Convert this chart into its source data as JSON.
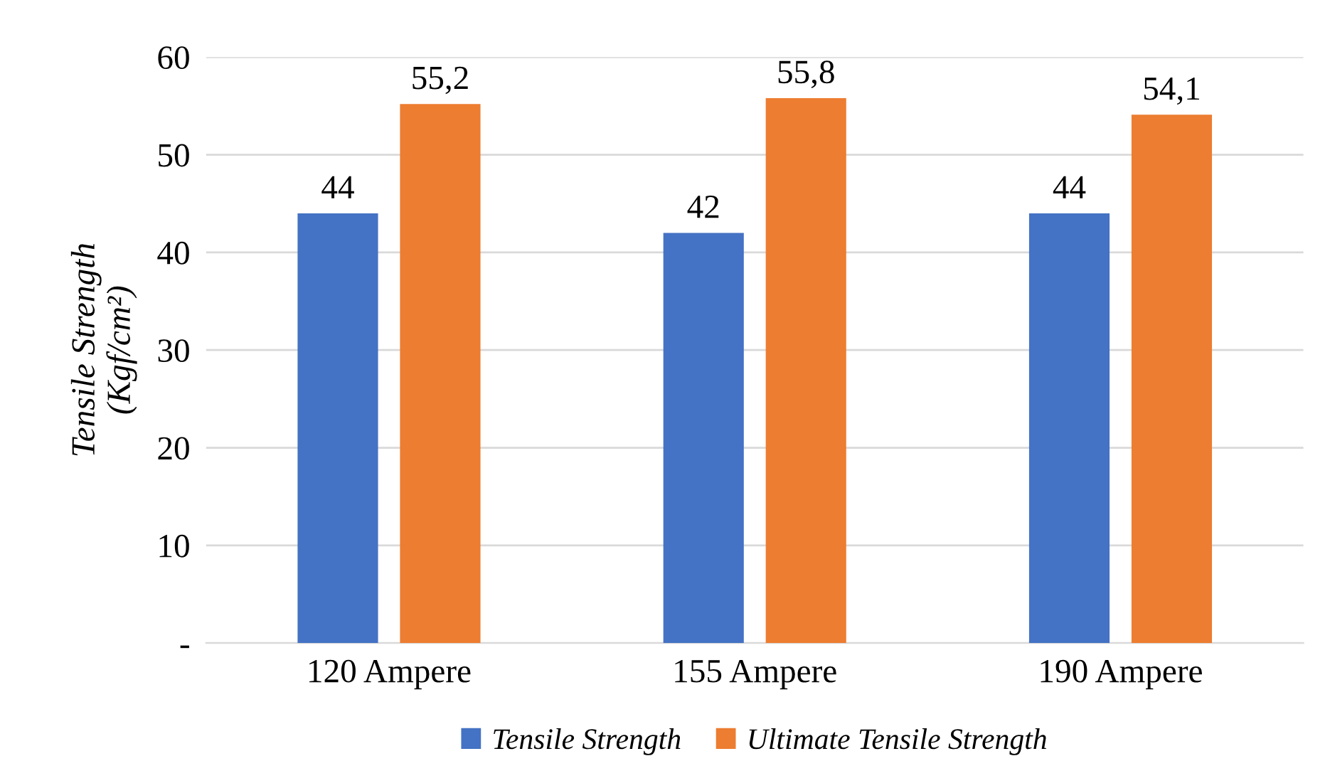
{
  "chart_data": {
    "type": "bar",
    "ylabel": "Tensile Strength\n(Kgf/cm²)",
    "categories": [
      "120 Ampere",
      "155 Ampere",
      "190 Ampere"
    ],
    "series": [
      {
        "name": "Tensile Strength",
        "color": "#4472c4",
        "values": [
          44,
          42,
          44
        ],
        "value_labels": [
          "44",
          "42",
          "44"
        ]
      },
      {
        "name": "Ultimate Tensile Strength",
        "color": "#ed7d31",
        "values": [
          55.2,
          55.8,
          54.1
        ],
        "value_labels": [
          "55,2",
          "55,8",
          "54,1"
        ]
      }
    ],
    "ylim": [
      0,
      60
    ],
    "yticks": [
      {
        "value": 0,
        "label": "-"
      },
      10,
      20,
      30,
      40,
      50,
      60
    ],
    "grid": "y",
    "legend": "bottom"
  }
}
